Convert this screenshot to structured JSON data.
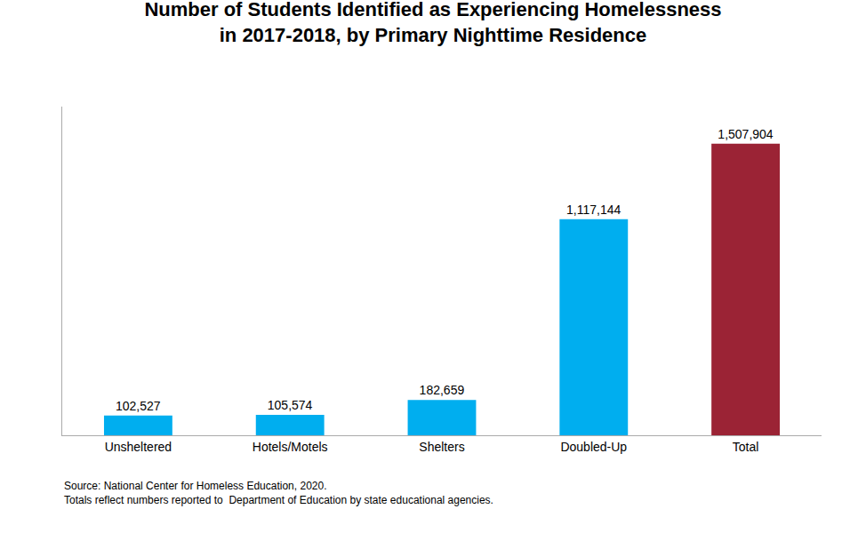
{
  "chart_data": {
    "type": "bar",
    "title": "Number of Students Identified as Experiencing Homelessness\nin 2017-2018, by Primary Nighttime Residence",
    "categories": [
      "Unsheltered",
      "Hotels/Motels",
      "Shelters",
      "Doubled-Up",
      "Total"
    ],
    "values": [
      102527,
      105574,
      182659,
      1117144,
      1507904
    ],
    "value_labels": [
      "102,527",
      "105,574",
      "182,659",
      "1,117,144",
      "1,507,904"
    ],
    "colors": [
      "#00AEEF",
      "#00AEEF",
      "#00AEEF",
      "#00AEEF",
      "#9B2335"
    ],
    "ylim": [
      0,
      1700000
    ],
    "grid": false,
    "data_labels": true,
    "tick_labels": "x",
    "annotations": [
      "Source: National Center for Homeless Education, 2020.\nTotals reflect numbers reported to  Department of Education by state educational agencies."
    ]
  }
}
